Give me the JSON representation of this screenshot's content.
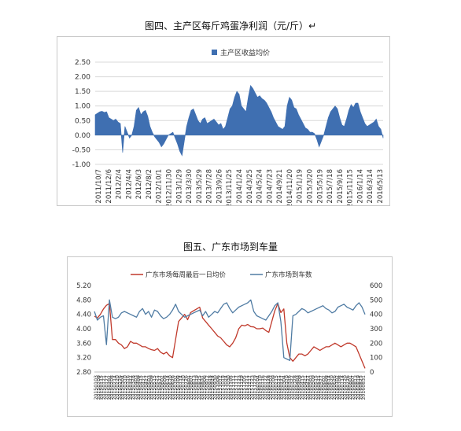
{
  "figure1": {
    "caption": "图四、主产区每斤鸡蛋净利润（元/斤）↵"
  },
  "figure2": {
    "caption": "图五、广东市场到车量"
  },
  "chart_data": [
    {
      "type": "area",
      "title": "",
      "legend": [
        "主产区收益均价"
      ],
      "legend_position": "top-center",
      "grid": true,
      "colors": {
        "series": "#3f6fb1",
        "grid": "#d9d9d9"
      },
      "y_ticks": [
        "2.50",
        "2.00",
        "1.50",
        "1.00",
        "0.50",
        "0.00",
        "-0.50",
        "-1.00"
      ],
      "ylim": [
        -1.0,
        2.5
      ],
      "x_tick_labels": [
        "2011/10/7",
        "2011/12/6",
        "2012/2/4",
        "2012/4/4",
        "2012/6/3",
        "2012/8/2",
        "2012/10/1",
        "2012/11/30",
        "2013/1/29",
        "2013/3/30",
        "2013/5/29",
        "2013/7/28",
        "2013/9/26",
        "2013/11/25",
        "2014/1/24",
        "2014/3/25",
        "2014/5/24",
        "2014/7/23",
        "2014/9/21",
        "2014/11/20",
        "2015/1/19",
        "2015/3/20",
        "2015/5/19",
        "2015/7/18",
        "2015/9/16",
        "2015/11/15",
        "2016/1/14",
        "2016/3/14",
        "2016/5/13"
      ],
      "series": [
        {
          "name": "主产区收益均价",
          "values": [
            0.7,
            0.75,
            0.8,
            0.82,
            0.78,
            0.8,
            0.6,
            0.55,
            0.5,
            0.55,
            0.45,
            0.4,
            -0.6,
            0.3,
            0.1,
            -0.1,
            0.0,
            0.3,
            0.85,
            0.95,
            0.7,
            0.8,
            0.85,
            0.65,
            0.3,
            0.1,
            -0.05,
            -0.15,
            -0.25,
            -0.4,
            -0.3,
            -0.15,
            0.0,
            0.05,
            0.1,
            -0.1,
            -0.3,
            -0.55,
            -0.7,
            -0.2,
            0.3,
            0.6,
            0.85,
            0.9,
            0.7,
            0.5,
            0.4,
            0.55,
            0.6,
            0.4,
            0.45,
            0.5,
            0.55,
            0.45,
            0.35,
            0.4,
            0.2,
            0.3,
            0.6,
            0.9,
            1.0,
            1.3,
            1.5,
            1.4,
            1.0,
            0.9,
            0.8,
            1.3,
            1.7,
            1.6,
            1.45,
            1.3,
            1.35,
            1.25,
            1.2,
            1.1,
            0.95,
            0.8,
            0.6,
            0.45,
            0.3,
            0.25,
            0.2,
            0.3,
            1.0,
            1.3,
            1.2,
            0.95,
            0.9,
            0.7,
            0.55,
            0.4,
            0.25,
            0.2,
            0.1,
            0.1,
            0.05,
            -0.15,
            -0.4,
            -0.2,
            0.0,
            0.3,
            0.6,
            0.8,
            0.9,
            1.0,
            0.9,
            0.6,
            0.35,
            0.3,
            0.55,
            0.85,
            1.05,
            0.95,
            1.1,
            1.1,
            0.8,
            0.6,
            0.4,
            0.3,
            0.35,
            0.4,
            0.45,
            0.55,
            0.3,
            0.2,
            -0.1
          ]
        }
      ]
    },
    {
      "type": "line",
      "title": "",
      "legend_position": "top",
      "grid": false,
      "y_left_ticks": [
        "5.20",
        "4.80",
        "4.40",
        "4.00",
        "3.60",
        "3.20",
        "2.80"
      ],
      "ylim_left": [
        2.8,
        5.2
      ],
      "y_right_ticks": [
        "600",
        "500",
        "400",
        "300",
        "200",
        "100",
        "0"
      ],
      "ylim_right": [
        0,
        600
      ],
      "x_tick_labels": [
        "20150103",
        "20150109",
        "20150115",
        "20150121",
        "20150127",
        "20150202",
        "20150208",
        "20150214",
        "20150220",
        "20150226",
        "20150304",
        "20150310",
        "20150316",
        "20150322",
        "20150328",
        "20150403",
        "20150409",
        "20150415",
        "20150421",
        "20150427",
        "20150503",
        "20150509",
        "20150515",
        "20150521",
        "20150527",
        "20150602",
        "20150608",
        "20150614",
        "20150620",
        "20150626",
        "20150702",
        "20150708",
        "20150714",
        "20150720",
        "20150726",
        "20150801",
        "20150807",
        "20150813",
        "20150819",
        "20150825",
        "20150831",
        "20150906",
        "20150912",
        "20150918",
        "20150924",
        "20150930",
        "20151006",
        "20151012",
        "20151018",
        "20151024",
        "20151030",
        "20151105",
        "20151111",
        "20151117",
        "20151123",
        "20151129",
        "20151205",
        "20151211",
        "20151217",
        "20151223",
        "20151229",
        "20160104",
        "20160110",
        "20160116",
        "20160122",
        "20160128",
        "20160203",
        "20160209",
        "20160215",
        "20160221",
        "20160227",
        "20160304",
        "20160310",
        "20160316",
        "20160322",
        "20160328",
        "20160403",
        "20160409",
        "20160415",
        "20160421",
        "20160427",
        "20160503",
        "20160509",
        "20160515",
        "20160521",
        "20160527",
        "20160602",
        "20160608",
        "20160614",
        "20160620",
        "20160626",
        "20160702",
        "20160708",
        "20160714",
        "20160720",
        "20160726",
        "20160801",
        "20160807",
        "20160813",
        "20160819",
        "20160825",
        "20160831"
      ],
      "series": [
        {
          "name": "广东市场每周最后一日均价",
          "axis": "left",
          "color": "#c0392b",
          "values": [
            4.35,
            4.3,
            4.4,
            4.55,
            4.65,
            4.7,
            3.7,
            3.7,
            3.6,
            3.55,
            3.45,
            3.5,
            3.65,
            3.6,
            3.6,
            3.55,
            3.5,
            3.5,
            3.45,
            3.42,
            3.4,
            3.45,
            3.35,
            3.3,
            3.35,
            3.25,
            3.2,
            3.7,
            4.2,
            4.3,
            4.4,
            4.25,
            4.45,
            4.5,
            4.55,
            4.6,
            4.3,
            4.2,
            4.1,
            4.0,
            3.9,
            3.8,
            3.75,
            3.65,
            3.55,
            3.5,
            3.6,
            3.75,
            4.0,
            4.1,
            4.08,
            4.12,
            4.06,
            4.05,
            4.0,
            4.0,
            4.02,
            3.95,
            3.9,
            4.2,
            4.5,
            4.7,
            4.45,
            4.55,
            3.6,
            3.2,
            3.1,
            3.2,
            3.3,
            3.3,
            3.25,
            3.3,
            3.4,
            3.5,
            3.45,
            3.4,
            3.45,
            3.5,
            3.5,
            3.55,
            3.6,
            3.55,
            3.5,
            3.55,
            3.6,
            3.6,
            3.55,
            3.5,
            3.3,
            3.1,
            2.9
          ]
        },
        {
          "name": "广东市场到车数",
          "axis": "right",
          "color": "#4f7ba3",
          "values": [
            420,
            360,
            380,
            390,
            190,
            500,
            380,
            370,
            380,
            410,
            420,
            410,
            400,
            390,
            380,
            420,
            440,
            400,
            420,
            380,
            430,
            420,
            390,
            370,
            380,
            400,
            430,
            470,
            420,
            400,
            380,
            390,
            400,
            410,
            420,
            430,
            390,
            420,
            380,
            400,
            420,
            410,
            440,
            470,
            480,
            440,
            410,
            430,
            450,
            460,
            470,
            480,
            500,
            420,
            390,
            380,
            370,
            360,
            390,
            420,
            460,
            480,
            350,
            100,
            90,
            80,
            390,
            400,
            420,
            440,
            430,
            410,
            420,
            430,
            440,
            450,
            460,
            440,
            430,
            410,
            420,
            450,
            460,
            470,
            450,
            440,
            430,
            460,
            480,
            450,
            400
          ]
        }
      ]
    }
  ]
}
